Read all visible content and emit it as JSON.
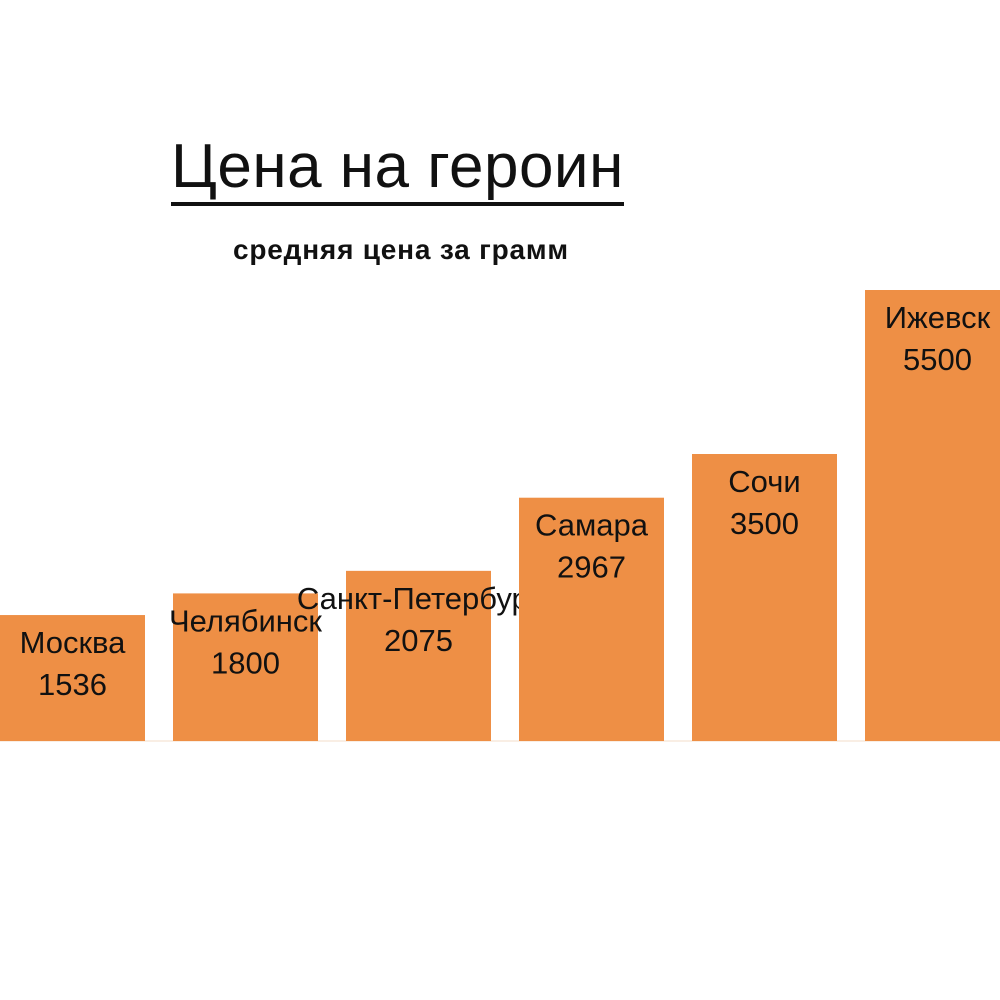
{
  "chart_data": {
    "type": "bar",
    "title": "Цена на героин",
    "subtitle": "средняя цена за грамм",
    "categories": [
      "Москва",
      "Челябинск",
      "Санкт-Петербург",
      "Самара",
      "Сочи",
      "Ижевск"
    ],
    "values": [
      1536,
      1800,
      2075,
      2967,
      3500,
      5500
    ],
    "value_labels": [
      "1536",
      "1800",
      "2075",
      "2967",
      "3500",
      "5500"
    ],
    "ylim": [
      0,
      6000
    ],
    "bar_color": "#ee8f45",
    "grid": false,
    "legend": "none"
  }
}
